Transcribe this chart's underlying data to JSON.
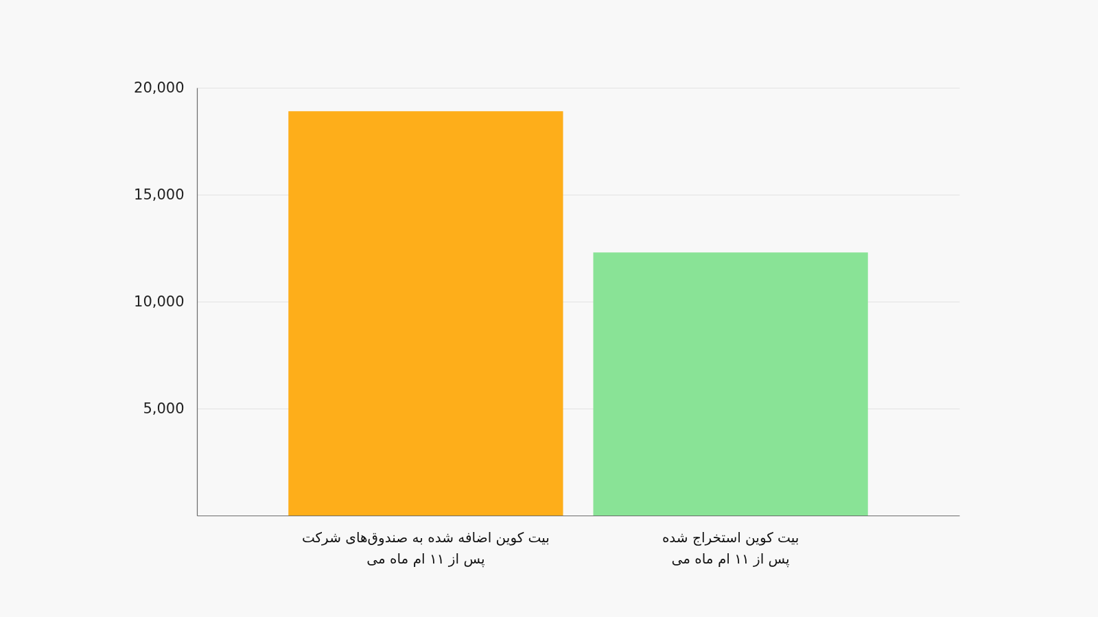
{
  "chart_data": {
    "type": "bar",
    "categories": [
      "بیت کوین اضافه شده به صندوق‌های شرکت\nپس از ۱۱ ام ماه می",
      "بیت کوین استخراج شده\nپس از ۱۱ ام ماه می"
    ],
    "values": [
      18900,
      12300
    ],
    "colors": [
      "#feae1a",
      "#89e396"
    ],
    "ylim": [
      0,
      20000
    ],
    "yticks": [
      {
        "value": 5000,
        "label": "5,000"
      },
      {
        "value": 10000,
        "label": "10,000"
      },
      {
        "value": 15000,
        "label": "15,000"
      },
      {
        "value": 20000,
        "label": "20,000"
      }
    ],
    "grid": "y"
  }
}
